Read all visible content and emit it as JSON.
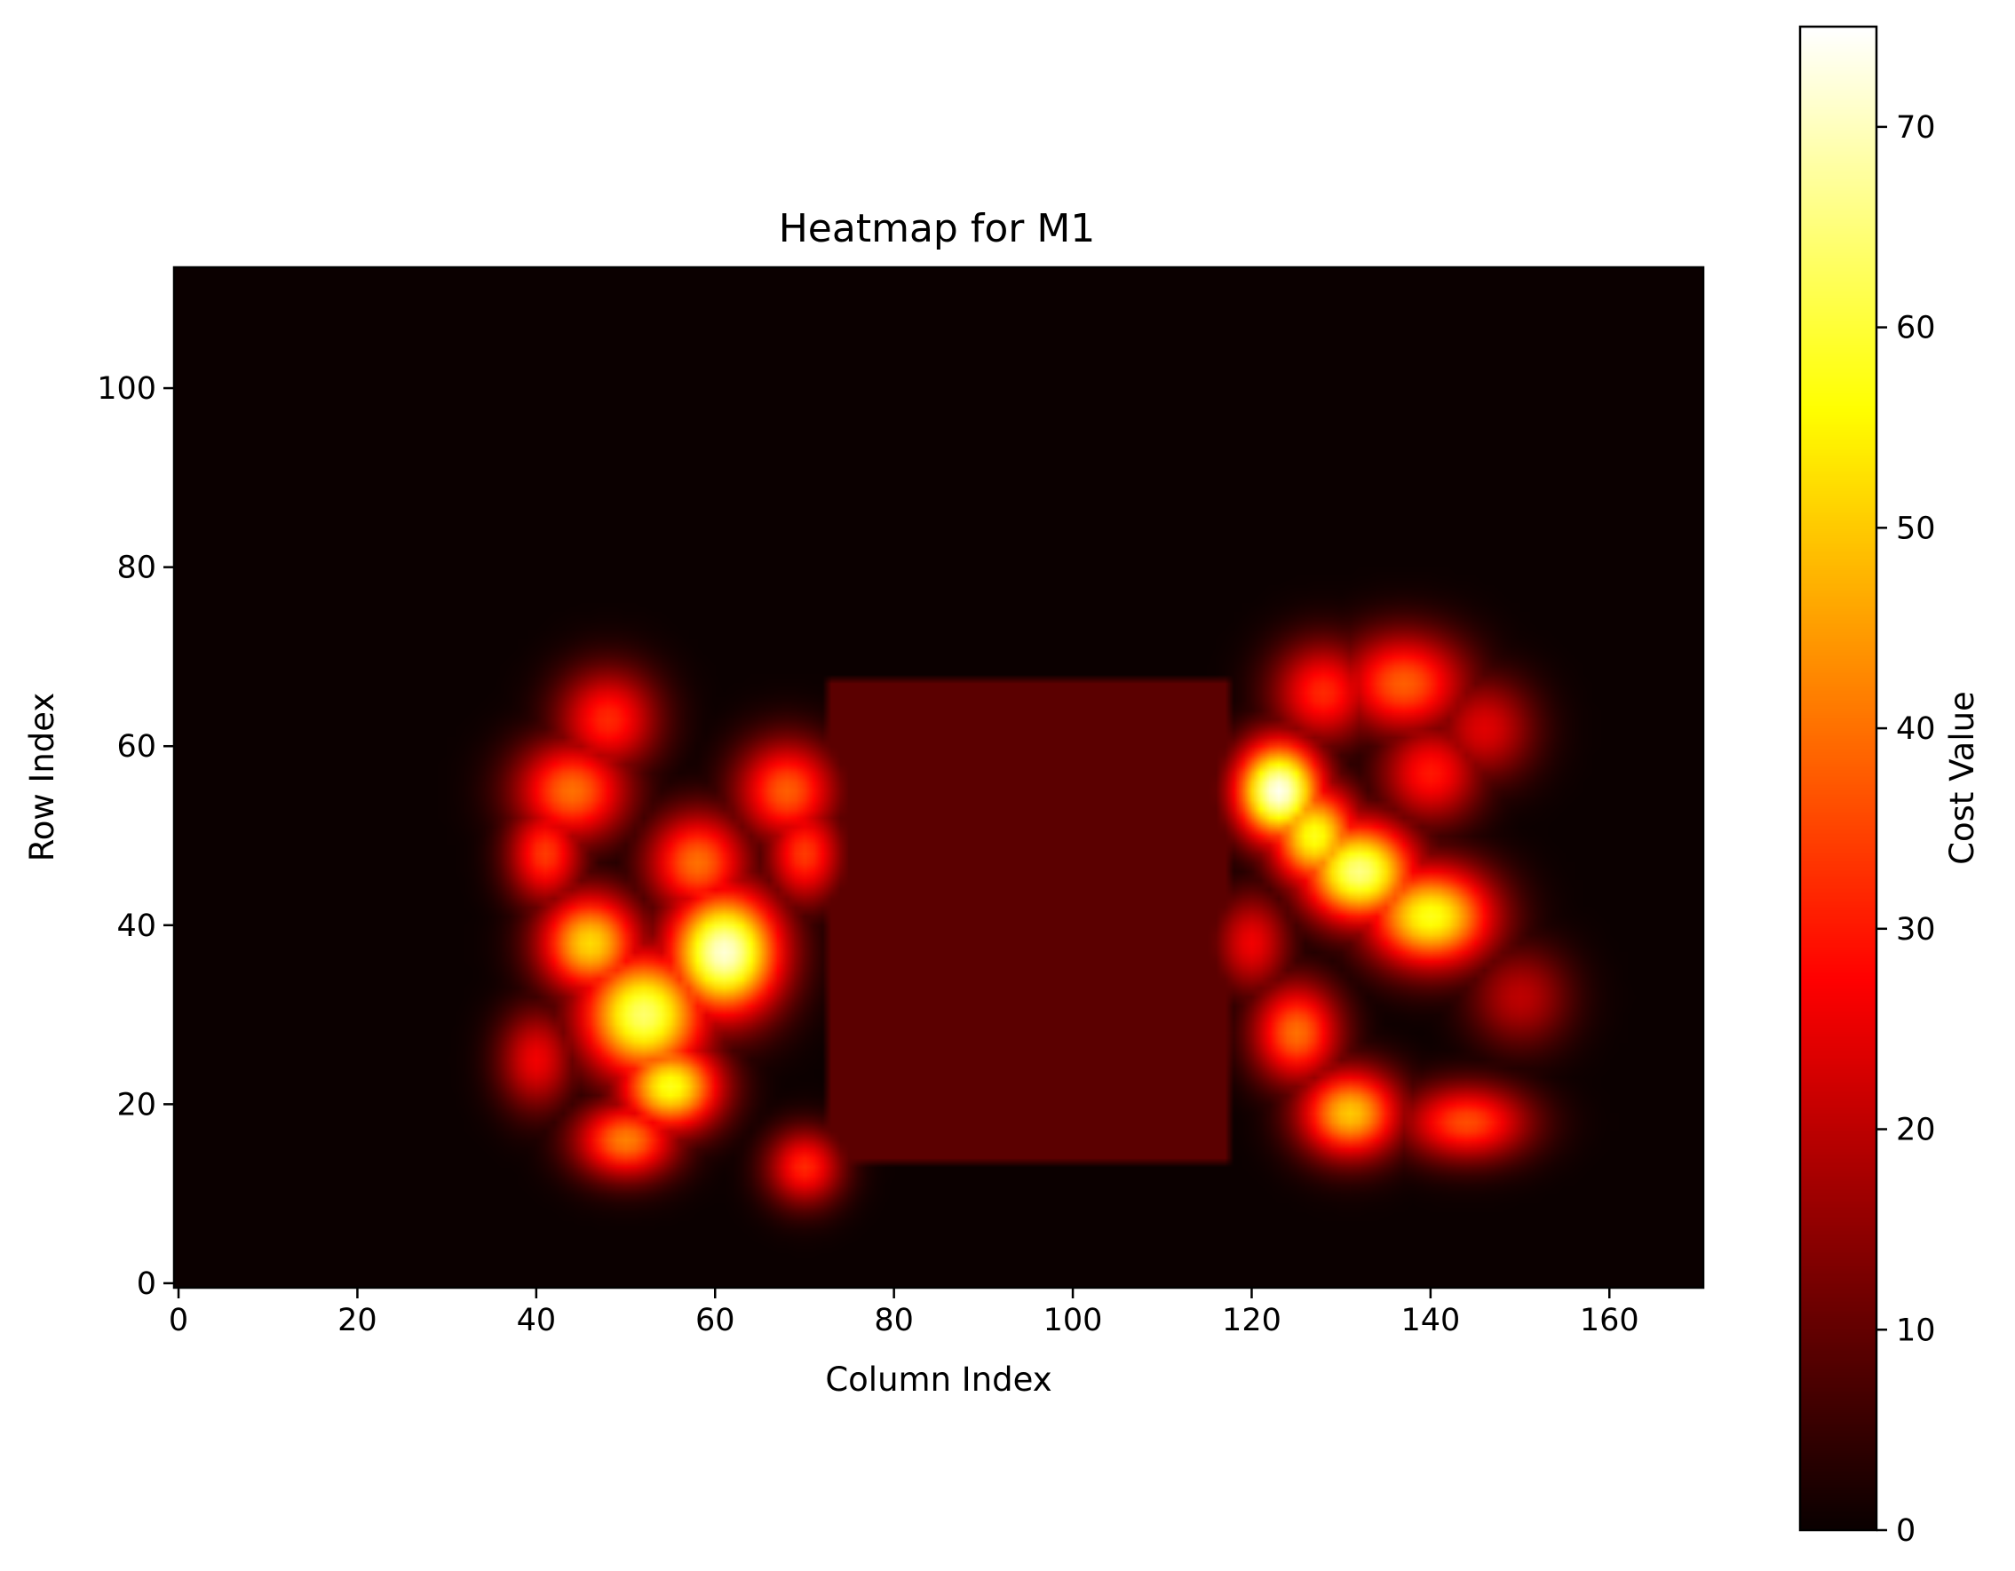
{
  "chart_data": {
    "type": "heatmap",
    "title": "Heatmap for M1",
    "xlabel": "Column Index",
    "ylabel": "Row Index",
    "xlim": [
      -0.5,
      170.5
    ],
    "ylim": [
      -0.5,
      113.5
    ],
    "origin": "lower",
    "colormap": "hot",
    "grid": false,
    "x_ticks": [
      0,
      20,
      40,
      60,
      80,
      100,
      120,
      140,
      160
    ],
    "y_ticks": [
      0,
      20,
      40,
      60,
      80,
      100
    ],
    "colorbar": {
      "label": "Cost Value",
      "range": [
        0,
        75
      ],
      "ticks": [
        0,
        10,
        20,
        30,
        40,
        50,
        60,
        70
      ]
    },
    "background_value": 0,
    "regions": [
      {
        "name": "block",
        "x_range": [
          72.5,
          117.5
        ],
        "y_range": [
          13.5,
          67.5
        ],
        "value": 9
      }
    ],
    "hotspots": [
      {
        "x": 61,
        "y": 37,
        "value": 72,
        "sx": 4.5,
        "sy": 5
      },
      {
        "x": 52,
        "y": 30,
        "value": 64,
        "sx": 5,
        "sy": 5
      },
      {
        "x": 55,
        "y": 22,
        "value": 58,
        "sx": 4,
        "sy": 3.5
      },
      {
        "x": 46,
        "y": 38,
        "value": 52,
        "sx": 4,
        "sy": 4
      },
      {
        "x": 44,
        "y": 55,
        "value": 40,
        "sx": 4.5,
        "sy": 4
      },
      {
        "x": 41,
        "y": 48,
        "value": 34,
        "sx": 3,
        "sy": 4
      },
      {
        "x": 48,
        "y": 63,
        "value": 32,
        "sx": 4,
        "sy": 4
      },
      {
        "x": 58,
        "y": 47,
        "value": 40,
        "sx": 4,
        "sy": 4
      },
      {
        "x": 68,
        "y": 55,
        "value": 38,
        "sx": 4,
        "sy": 4
      },
      {
        "x": 70,
        "y": 48,
        "value": 34,
        "sx": 3,
        "sy": 4
      },
      {
        "x": 50,
        "y": 16,
        "value": 42,
        "sx": 4,
        "sy": 3
      },
      {
        "x": 70,
        "y": 13,
        "value": 32,
        "sx": 3,
        "sy": 3
      },
      {
        "x": 40,
        "y": 25,
        "value": 26,
        "sx": 3,
        "sy": 4
      },
      {
        "x": 123,
        "y": 55,
        "value": 74,
        "sx": 3.5,
        "sy": 4
      },
      {
        "x": 132,
        "y": 46,
        "value": 66,
        "sx": 4.5,
        "sy": 4
      },
      {
        "x": 140,
        "y": 41,
        "value": 58,
        "sx": 5,
        "sy": 4
      },
      {
        "x": 127,
        "y": 50,
        "value": 58,
        "sx": 3.5,
        "sy": 4
      },
      {
        "x": 131,
        "y": 19,
        "value": 50,
        "sx": 4,
        "sy": 3.5
      },
      {
        "x": 125,
        "y": 28,
        "value": 40,
        "sx": 3.5,
        "sy": 4
      },
      {
        "x": 144,
        "y": 18,
        "value": 36,
        "sx": 5,
        "sy": 3
      },
      {
        "x": 137,
        "y": 67,
        "value": 38,
        "sx": 5,
        "sy": 4
      },
      {
        "x": 140,
        "y": 57,
        "value": 30,
        "sx": 4,
        "sy": 4
      },
      {
        "x": 128,
        "y": 66,
        "value": 32,
        "sx": 4,
        "sy": 4
      },
      {
        "x": 150,
        "y": 32,
        "value": 20,
        "sx": 4,
        "sy": 4
      },
      {
        "x": 146,
        "y": 62,
        "value": 24,
        "sx": 4,
        "sy": 4
      },
      {
        "x": 120,
        "y": 38,
        "value": 26,
        "sx": 3,
        "sy": 4
      }
    ]
  }
}
